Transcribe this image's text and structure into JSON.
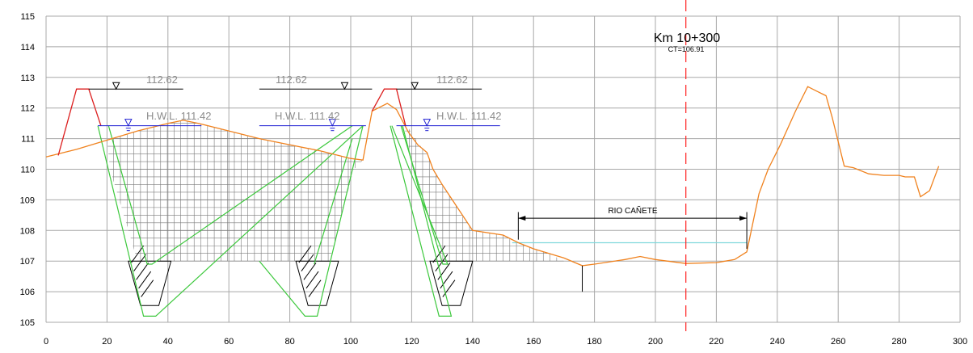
{
  "header": {
    "title": "Km  10+300",
    "subtitle": "CT=106.91"
  },
  "y_ticks": [
    "115",
    "114",
    "113",
    "112",
    "111",
    "110",
    "109",
    "108",
    "107",
    "106",
    "105"
  ],
  "x_ticks": [
    "0",
    "20",
    "40",
    "60",
    "80",
    "100",
    "120",
    "140",
    "160",
    "180",
    "200",
    "220",
    "240",
    "260",
    "280",
    "300"
  ],
  "levels": {
    "crest_label_1": "112.62",
    "crest_label_2": "112.62",
    "crest_label_3": "112.62",
    "hwl_label_1": "H.W.L.  111.42",
    "hwl_label_2": "H.W.L.  111.42",
    "hwl_label_3": "H.W.L.  111.42"
  },
  "river": {
    "label": "RIO   CAÑETE"
  },
  "colors": {
    "grid": "#a8a8a8",
    "ground": "#f0821e",
    "dike": "#dc1e1e",
    "excavation": "#3cc83c",
    "water_level": "#1e1ed2",
    "water_surface": "#7fd8dc",
    "axis": "#ff2020",
    "text": "#000000",
    "level_text": "#8c8c8c",
    "hatch": "#7a7a7a"
  },
  "chart_data": {
    "type": "line",
    "xlabel": "",
    "ylabel": "",
    "xlim": [
      0,
      300
    ],
    "ylim": [
      105,
      115
    ],
    "axis_station_x": 210,
    "series": [
      {
        "role": "ground-profile",
        "x": [
          0,
          10,
          20,
          30,
          40,
          45,
          50,
          60,
          70,
          80,
          90,
          100,
          104,
          107,
          112,
          115,
          119,
          122,
          125,
          127,
          130,
          140,
          150,
          155,
          160,
          170,
          176,
          180,
          190,
          195,
          200,
          210,
          220,
          226,
          230,
          234,
          237,
          241,
          246,
          250,
          253,
          256,
          258,
          262,
          265,
          270,
          275,
          280,
          282,
          285,
          287,
          290,
          293
        ],
        "y": [
          110.4,
          110.65,
          110.95,
          111.25,
          111.5,
          111.6,
          111.5,
          111.25,
          111.0,
          110.8,
          110.6,
          110.35,
          110.3,
          111.9,
          112.15,
          111.95,
          111.2,
          110.8,
          110.55,
          110.0,
          109.5,
          108.0,
          107.85,
          107.6,
          107.4,
          107.1,
          106.85,
          106.9,
          107.05,
          107.15,
          107.05,
          106.92,
          106.95,
          107.05,
          107.3,
          109.2,
          110.0,
          110.8,
          111.9,
          112.7,
          112.55,
          112.4,
          111.7,
          110.1,
          110.05,
          109.85,
          109.8,
          109.8,
          109.75,
          109.75,
          109.1,
          109.3,
          110.1
        ]
      },
      {
        "role": "dike-left",
        "x": [
          4,
          10,
          14,
          18
        ],
        "y": [
          110.45,
          112.62,
          112.62,
          111.42
        ]
      },
      {
        "role": "dike-right",
        "x": [
          107,
          111,
          115,
          118
        ],
        "y": [
          111.9,
          112.62,
          112.62,
          111.42
        ]
      },
      {
        "role": "water-surface",
        "x": [
          153,
          230
        ],
        "y": [
          107.6,
          107.6
        ]
      }
    ]
  }
}
